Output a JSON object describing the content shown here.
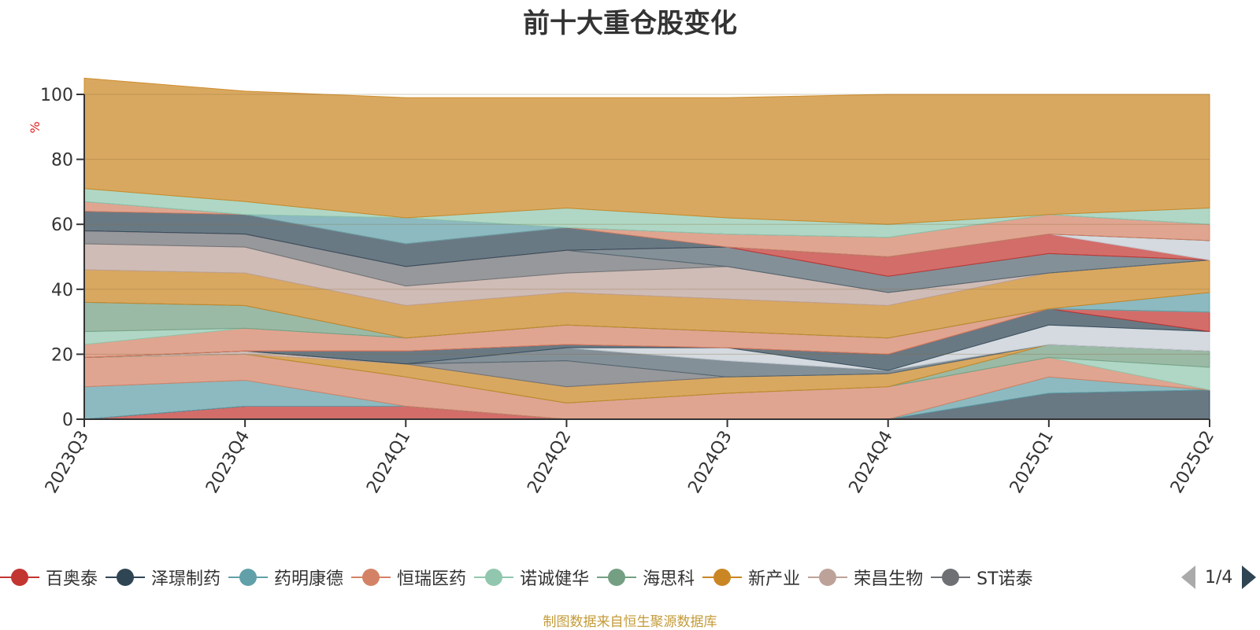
{
  "title": "前十大重仓股变化",
  "source_note": "制图数据来自恒生聚源数据库",
  "legend_pager": "1/4",
  "chart_data": {
    "type": "area",
    "stacked": true,
    "title": "前十大重仓股变化",
    "ylabel": "%",
    "ylim": [
      0,
      100
    ],
    "yticks": [
      0,
      20,
      40,
      60,
      80,
      100
    ],
    "grid": true,
    "legend_position": "bottom",
    "categories": [
      "2023Q3",
      "2023Q4",
      "2024Q1",
      "2024Q2",
      "2024Q3",
      "2024Q4",
      "2025Q1",
      "2025Q2"
    ],
    "series": [
      {
        "name": "百奥泰",
        "color": "#c23531",
        "values": [
          0,
          4,
          4,
          0,
          0,
          0,
          0,
          0
        ]
      },
      {
        "name": "",
        "color": "#2f4554",
        "values": [
          0,
          0,
          0,
          0,
          0,
          0,
          8,
          9
        ]
      },
      {
        "name": "",
        "color": "#61a0a8",
        "values": [
          10,
          8,
          0,
          0,
          0,
          0,
          5,
          0
        ]
      },
      {
        "name": "",
        "color": "#d48265",
        "values": [
          9,
          8,
          9,
          5,
          8,
          10,
          6,
          0
        ]
      },
      {
        "name": "",
        "color": "#91c7ae",
        "values": [
          0,
          0,
          0,
          0,
          0,
          0,
          0,
          7
        ]
      },
      {
        "name": "",
        "color": "#749f83",
        "values": [
          0,
          0,
          0,
          0,
          0,
          0,
          4,
          5
        ]
      },
      {
        "name": "",
        "color": "#ca8622",
        "values": [
          0,
          0,
          4,
          5,
          5,
          4,
          0,
          0
        ]
      },
      {
        "name": "",
        "color": "#bda29a",
        "values": [
          0,
          1,
          0,
          0,
          0,
          0,
          0,
          0
        ]
      },
      {
        "name": "",
        "color": "#6e7074",
        "values": [
          0,
          0,
          0,
          8,
          0,
          0,
          0,
          0
        ]
      },
      {
        "name": "",
        "color": "#546570",
        "values": [
          0,
          0,
          0,
          4,
          5,
          1,
          0,
          0
        ]
      },
      {
        "name": "",
        "color": "#c4ccd3",
        "values": [
          0,
          0,
          0,
          0,
          4,
          0,
          6,
          6
        ]
      },
      {
        "name": "",
        "color": "#2f4554",
        "values": [
          0,
          0,
          4,
          1,
          0,
          5,
          5,
          0
        ]
      },
      {
        "name": "",
        "color": "#c23531",
        "values": [
          0,
          0,
          0,
          0,
          0,
          0,
          0,
          6
        ]
      },
      {
        "name": "",
        "color": "#d48265",
        "values": [
          4,
          7,
          4,
          6,
          5,
          5,
          0,
          0
        ]
      },
      {
        "name": "",
        "color": "#91c7ae",
        "values": [
          4,
          0,
          0,
          0,
          0,
          0,
          0,
          0
        ]
      },
      {
        "name": "",
        "color": "#749f83",
        "values": [
          9,
          7,
          0,
          0,
          0,
          0,
          0,
          0
        ]
      },
      {
        "name": "",
        "color": "#61a0a8",
        "values": [
          0,
          0,
          0,
          0,
          0,
          0,
          0,
          6
        ]
      },
      {
        "name": "",
        "color": "#ca8622",
        "values": [
          10,
          10,
          10,
          10,
          10,
          10,
          11,
          10
        ]
      },
      {
        "name": "",
        "color": "#bda29a",
        "values": [
          8,
          8,
          6,
          6,
          10,
          4,
          0,
          0
        ]
      },
      {
        "name": "",
        "color": "#6e7074",
        "values": [
          4,
          4,
          6,
          7,
          0,
          0,
          0,
          0
        ]
      },
      {
        "name": "",
        "color": "#546570",
        "values": [
          0,
          0,
          0,
          0,
          6,
          5,
          6,
          0
        ]
      },
      {
        "name": "",
        "color": "#c23531",
        "values": [
          0,
          0,
          0,
          0,
          0,
          6,
          6,
          0
        ]
      },
      {
        "name": "",
        "color": "#c4ccd3",
        "values": [
          0,
          0,
          0,
          0,
          0,
          0,
          0,
          6
        ]
      },
      {
        "name": "",
        "color": "#2f4554",
        "values": [
          6,
          6,
          7,
          7,
          0,
          0,
          0,
          0
        ]
      },
      {
        "name": "",
        "color": "#d48265",
        "values": [
          3,
          0,
          0,
          0,
          4,
          6,
          6,
          5
        ]
      },
      {
        "name": "",
        "color": "#61a0a8",
        "values": [
          0,
          0,
          8,
          0,
          0,
          0,
          0,
          0
        ]
      },
      {
        "name": "",
        "color": "#91c7ae",
        "values": [
          4,
          4,
          0,
          6,
          5,
          4,
          0,
          5
        ]
      },
      {
        "name": "",
        "color": "#ca8622",
        "values": [
          34,
          34,
          37,
          34,
          37,
          40,
          37,
          35
        ]
      }
    ]
  },
  "legend": [
    {
      "label": "百奥泰",
      "color": "#c23531",
      "icon": "circle"
    },
    {
      "label": "泽璟制药",
      "color": "#2f4554",
      "icon": "circle"
    },
    {
      "label": "药明康德",
      "color": "#61a0a8",
      "icon": "circle"
    },
    {
      "label": "恒瑞医药",
      "color": "#d48265",
      "icon": "circle"
    },
    {
      "label": "诺诚健华",
      "color": "#91c7ae",
      "icon": "circle"
    },
    {
      "label": "海思科",
      "color": "#749f83",
      "icon": "circle"
    },
    {
      "label": "新产业",
      "color": "#ca8622",
      "icon": "circle"
    },
    {
      "label": "荣昌生物",
      "color": "#bda29a",
      "icon": "circle"
    },
    {
      "label": "ST诺泰",
      "color": "#6e7074",
      "icon": "circle"
    }
  ],
  "pager_icons": {
    "prev": "triangle-left-icon",
    "next": "triangle-right-icon"
  }
}
